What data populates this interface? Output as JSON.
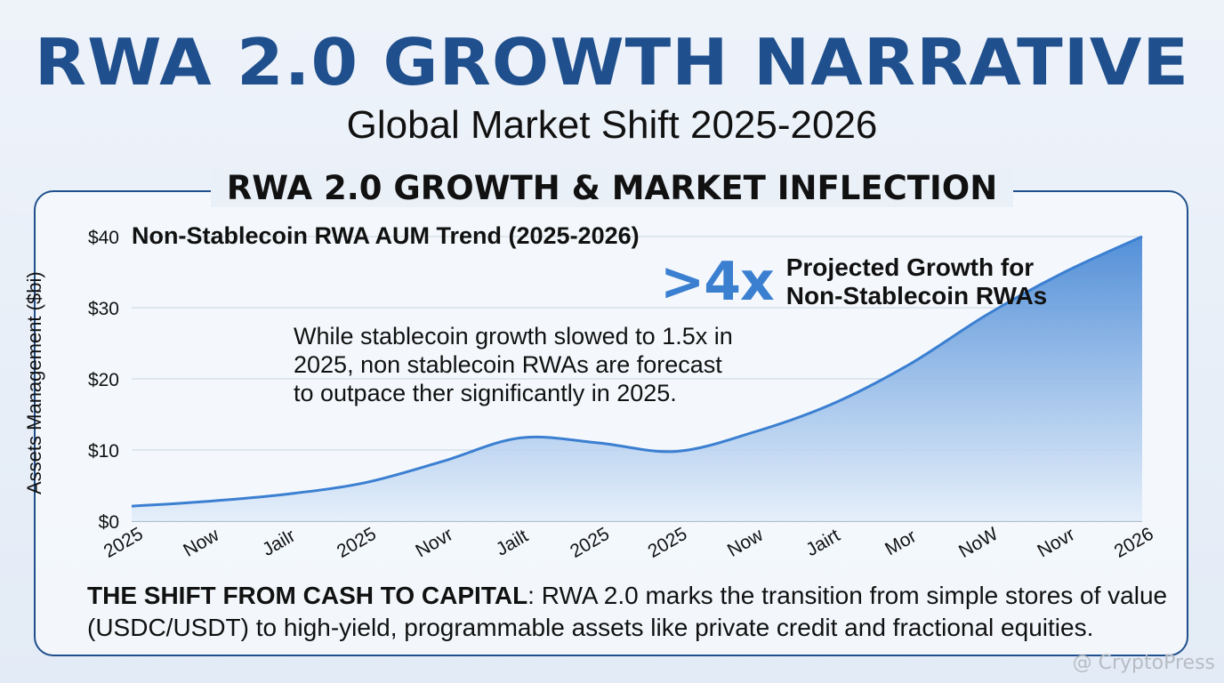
{
  "header": {
    "title": "RWA 2.0 GROWTH NARRATIVE",
    "subtitle": "Global Market Shift 2025-2026"
  },
  "panel": {
    "heading": "RWA 2.0 GROWTH & MARKET INFLECTION"
  },
  "callout": {
    "big": ">4x",
    "line1": "Projected Growth for",
    "line2": "Non-Stablecoin RWAs"
  },
  "note": "While stablecoin growth slowed to 1.5x in 2025, non stablecoin RWAs are forecast to outpace ther significantly in 2025.",
  "shift": {
    "label": "THE SHIFT FROM CASH TO CAPITAL",
    "text": ": RWA 2.0 marks the transition from simple stores of value (USDC/USDT) to high-yield, programmable assets like private credit and fractional equities."
  },
  "watermark": "@ CryptoPress",
  "colors": {
    "accent": "#1f4f8c",
    "series": "#3b7fd1",
    "fill_top": "#4a8ad6",
    "fill_bottom": "#e4eefa"
  },
  "chart_data": {
    "type": "area",
    "title": "Non-Stablecoin RWA AUM Trend (2025-2026)",
    "ylabel": "Assets Management ($bi)",
    "xlabel": "",
    "categories": [
      "2025",
      "Now",
      "Jailr",
      "2025",
      "Novr",
      "Jailt",
      "2025",
      "2025",
      "Now",
      "Jairt",
      "Mor",
      "NoW",
      "Novr",
      "2026"
    ],
    "values": [
      2.1,
      2.8,
      3.8,
      5.4,
      8.4,
      11.7,
      11.0,
      9.8,
      12.5,
      16.4,
      22.0,
      29.0,
      35.0,
      40.0
    ],
    "ylim": [
      0,
      40
    ],
    "yticks": [
      0,
      10,
      20,
      30,
      40
    ],
    "ytick_labels": [
      "$0",
      "$10",
      "$20",
      "$30",
      "$40"
    ],
    "grid": true
  }
}
